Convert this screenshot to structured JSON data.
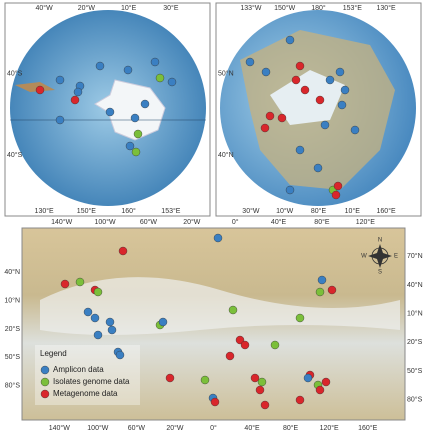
{
  "panels": [
    {
      "top": [
        "40°W",
        "20°W",
        "10°E",
        "30°E"
      ],
      "left": [
        "40°S",
        "40°S"
      ],
      "bottom": [
        "130°E",
        "150°E",
        "160°",
        "153°E"
      ]
    },
    {
      "top": [
        "133°W",
        "150°W",
        "180°",
        "153°E",
        "130°E"
      ],
      "left": [
        "50°N",
        "40°N"
      ],
      "bottom": [
        "30°W",
        "10°W",
        "80°E",
        "10°E",
        "160°E"
      ]
    },
    {
      "top": [
        "140°W",
        "100°W",
        "60°W",
        "20°W",
        "0°",
        "40°E",
        "80°E",
        "120°E"
      ],
      "left": [
        "40°N",
        "10°N",
        "20°S",
        "50°S",
        "80°S"
      ],
      "right": [
        "70°N",
        "40°N",
        "10°N",
        "20°S",
        "50°S",
        "80°S"
      ],
      "bottom": [
        "140°W",
        "100°W",
        "60°W",
        "20°W",
        "0°",
        "40°E",
        "80°E",
        "120°E",
        "160°E"
      ]
    }
  ],
  "legend": {
    "title": "Legend",
    "items": [
      {
        "label": "Amplicon data",
        "color": "#3a7fc2"
      },
      {
        "label": "Isolates genome data",
        "color": "#7bbf3a"
      },
      {
        "label": "Metagenome data",
        "color": "#d9262b"
      }
    ]
  },
  "compass": {
    "n": "N",
    "s": "S",
    "w": "W",
    "e": "E"
  }
}
